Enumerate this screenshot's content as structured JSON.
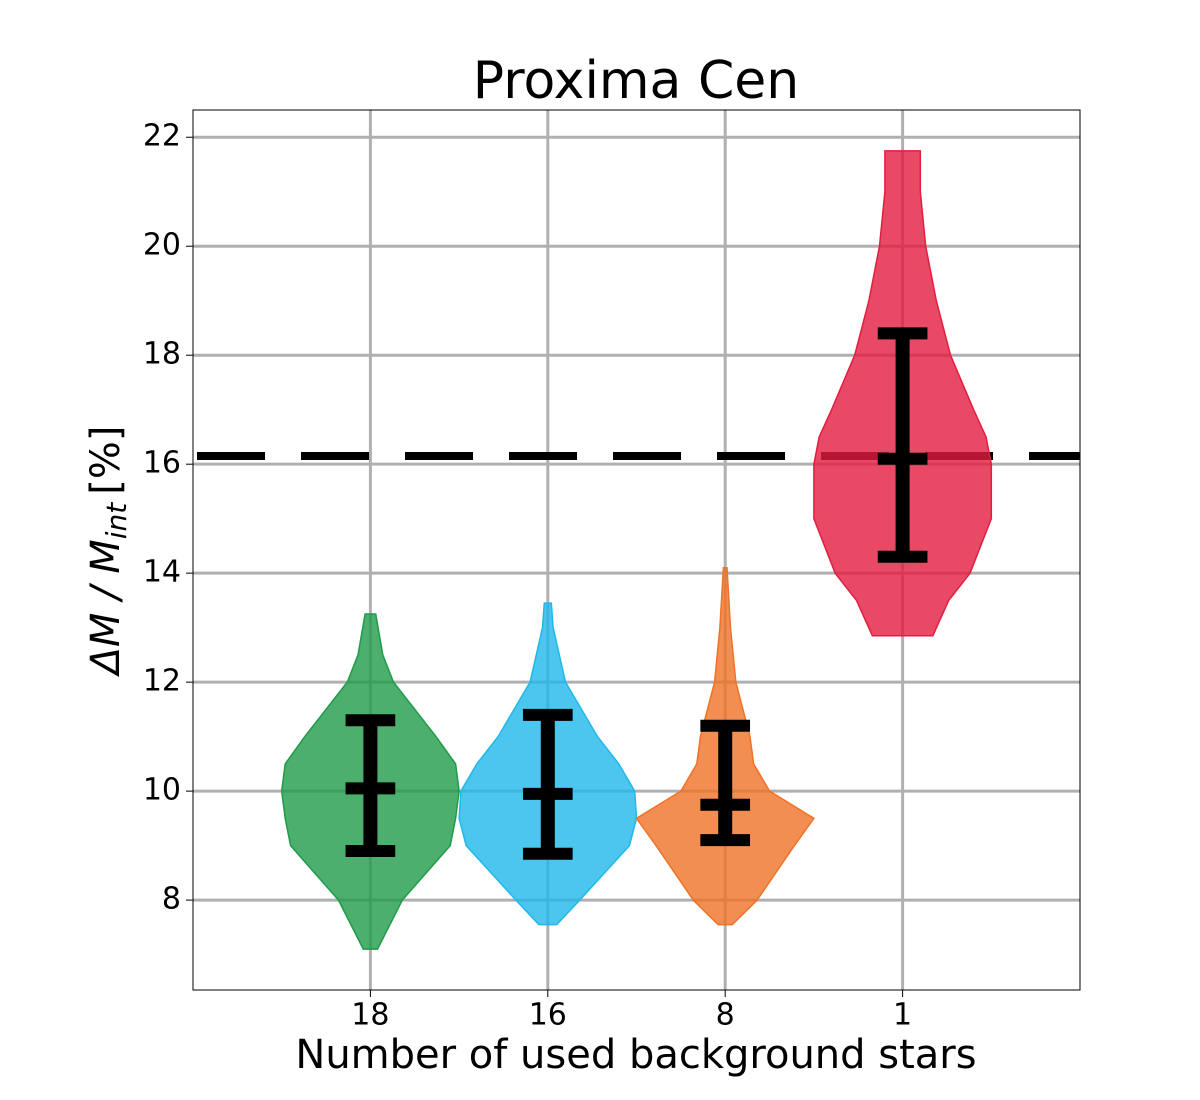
{
  "chart_data": {
    "type": "violin",
    "title": "Proxima Cen",
    "xlabel": "Number of used background stars",
    "ylabel": {
      "main": "ΔM / M",
      "sub": "int",
      "unit": "[%]"
    },
    "categories": [
      "18",
      "16",
      "8",
      "1"
    ],
    "xlim": [
      -1,
      4
    ],
    "ylim": [
      6.35,
      22.5
    ],
    "yticks": [
      8,
      10,
      12,
      14,
      16,
      18,
      20,
      22
    ],
    "grid": true,
    "reference_line": 16.15,
    "alpha": 0.8,
    "series": [
      {
        "color": "#1f9b4a",
        "lower": 8.9,
        "center": 10.05,
        "upper": 11.3,
        "profile": {
          "y": [
            7.1,
            8,
            9,
            9.5,
            10,
            10.5,
            11,
            12,
            12.5,
            13.25
          ],
          "width": [
            0.04,
            0.18,
            0.45,
            0.48,
            0.5,
            0.48,
            0.37,
            0.13,
            0.07,
            0.03
          ]
        }
      },
      {
        "color": "#1fb8ea",
        "lower": 8.85,
        "center": 9.95,
        "upper": 11.4,
        "profile": {
          "y": [
            7.55,
            8,
            9,
            9.5,
            10,
            10.5,
            11,
            12,
            13,
            13.45
          ],
          "width": [
            0.05,
            0.18,
            0.46,
            0.5,
            0.49,
            0.4,
            0.28,
            0.1,
            0.03,
            0.02
          ]
        }
      },
      {
        "color": "#ef7227",
        "lower": 9.1,
        "center": 9.75,
        "upper": 11.2,
        "profile": {
          "y": [
            7.55,
            8,
            9,
            9.5,
            10,
            10.5,
            11,
            12,
            13,
            14.1
          ],
          "width": [
            0.04,
            0.18,
            0.39,
            0.5,
            0.25,
            0.16,
            0.14,
            0.06,
            0.03,
            0.01
          ]
        }
      },
      {
        "color": "#e21d40",
        "lower": 14.3,
        "center": 16.1,
        "upper": 18.4,
        "profile": {
          "y": [
            12.85,
            13.5,
            14,
            15,
            16,
            16.5,
            17,
            18,
            19,
            20,
            21,
            21.75
          ],
          "width": [
            0.17,
            0.26,
            0.38,
            0.5,
            0.5,
            0.47,
            0.4,
            0.27,
            0.19,
            0.13,
            0.1,
            0.1
          ]
        }
      }
    ]
  }
}
